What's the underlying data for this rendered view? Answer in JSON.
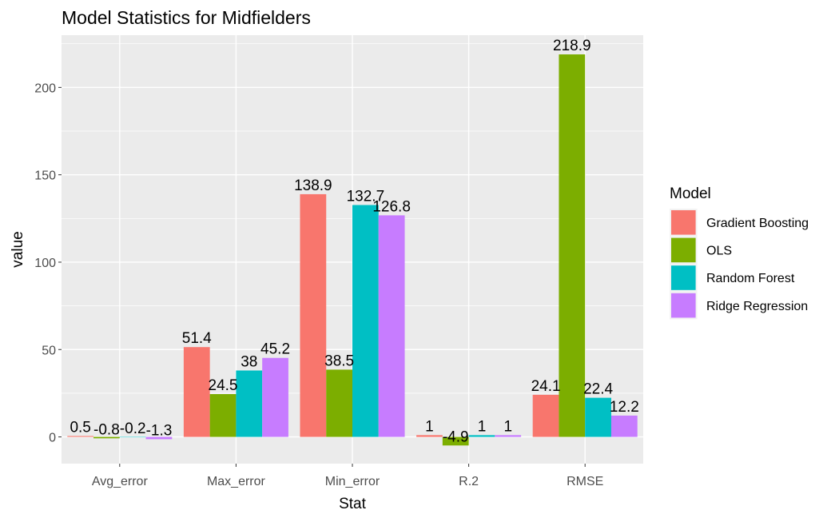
{
  "chart_data": {
    "type": "bar",
    "title": "Model Statistics for Midfielders",
    "xlabel": "Stat",
    "ylabel": "value",
    "categories": [
      "Avg_error",
      "Max_error",
      "Min_error",
      "R.2",
      "RMSE"
    ],
    "series": [
      {
        "name": "Gradient Boosting",
        "color": "#F8766D",
        "values": [
          0.5,
          51.4,
          138.9,
          1,
          24.1
        ],
        "labels": [
          "0.5",
          "51.4",
          "138.9",
          "1",
          "24.1"
        ]
      },
      {
        "name": "OLS",
        "color": "#7CAE00",
        "values": [
          -0.8,
          24.5,
          38.5,
          -4.9,
          218.9
        ],
        "labels": [
          "-0.8",
          "24.5",
          "38.5",
          "-4.9",
          "218.9"
        ]
      },
      {
        "name": "Random Forest",
        "color": "#00BFC4",
        "values": [
          -0.2,
          38,
          132.7,
          1,
          22.4
        ],
        "labels": [
          "-0.2",
          "38",
          "132.7",
          "1",
          "22.4"
        ]
      },
      {
        "name": "Ridge Regression",
        "color": "#C77CFF",
        "values": [
          -1.3,
          45.2,
          126.8,
          1,
          12.2
        ],
        "labels": [
          "-1.3",
          "45.2",
          "126.8",
          "1",
          "12.2"
        ]
      }
    ],
    "ylim": [
      -15.3,
      229.9
    ],
    "yticks": [
      0,
      50,
      100,
      150,
      200
    ],
    "legend": {
      "title": "Model",
      "position": "right"
    },
    "grid": true,
    "panel_background": "#EBEBEB"
  }
}
